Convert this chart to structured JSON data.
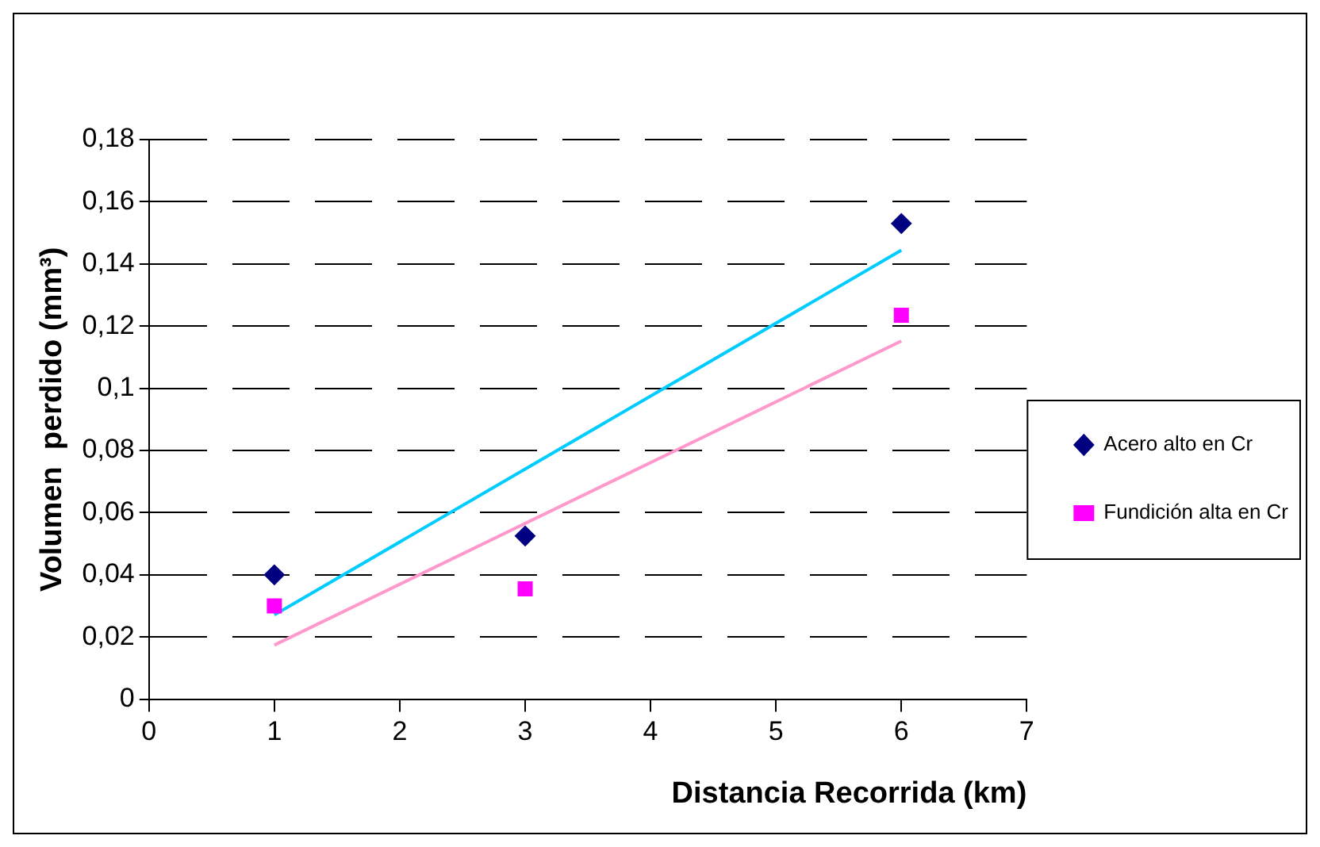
{
  "chart_data": {
    "type": "scatter",
    "xlabel": "Distancia Recorrida (km)",
    "ylabel": "Volumen  perdido (mm³)",
    "xlim": [
      0,
      7
    ],
    "xticks": [
      0,
      1,
      2,
      3,
      4,
      5,
      6,
      7
    ],
    "ylim": [
      0,
      0.18
    ],
    "yticks": [
      0,
      {
        "value": 0.02,
        "label": "0,02"
      },
      {
        "value": 0.04,
        "label": "0,04"
      },
      {
        "value": 0.06,
        "label": "0,06"
      },
      {
        "value": 0.08,
        "label": "0,08"
      },
      {
        "value": 0.1,
        "label": "0,1"
      },
      {
        "value": 0.12,
        "label": "0,12"
      },
      {
        "value": 0.14,
        "label": "0,14"
      },
      {
        "value": 0.16,
        "label": "0,16"
      },
      {
        "value": 0.18,
        "label": "0,18"
      }
    ],
    "grid": "y",
    "legend": "right",
    "series": [
      {
        "name": "Acero alto en Cr",
        "color": "#000080",
        "marker": "diamond",
        "x": [
          1,
          3,
          6
        ],
        "values": [
          0.04,
          0.0525,
          0.153
        ]
      },
      {
        "name": "Fundición alta en Cr",
        "color": "#ff00ff",
        "marker": "square",
        "x": [
          1,
          3,
          6
        ],
        "values": [
          0.03,
          0.0355,
          0.1235
        ]
      },
      {
        "type": "line",
        "color": "#00ccff",
        "marker": "none",
        "x": [
          1,
          6
        ],
        "values": [
          0.0271,
          0.1444
        ]
      },
      {
        "type": "line",
        "color": "#ff99cc",
        "marker": "none",
        "x": [
          1,
          6
        ],
        "values": [
          0.0174,
          0.1152
        ]
      }
    ]
  }
}
